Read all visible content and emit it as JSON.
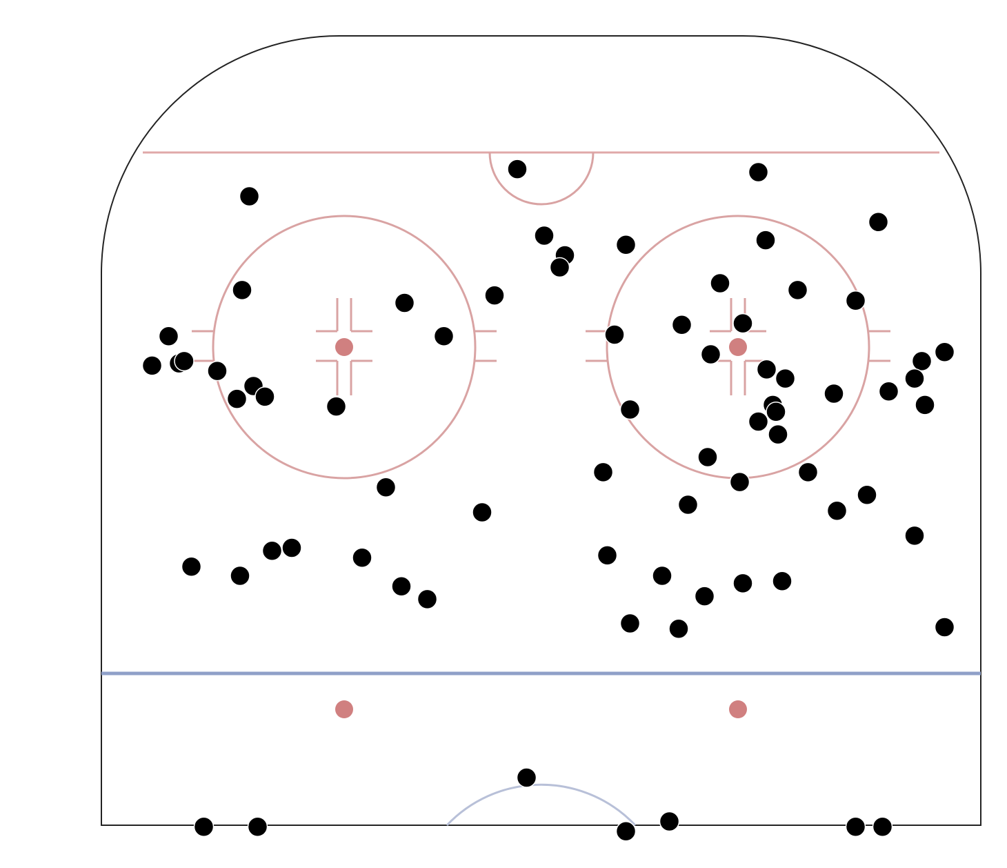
{
  "chart_data": {
    "type": "scatter",
    "title": "",
    "xlabel": "",
    "ylabel": "",
    "xlim": [
      -42.5,
      42.5
    ],
    "ylim": [
      0,
      100
    ],
    "grid": false,
    "background": "hockey-rink-offensive-zone",
    "colors": {
      "points": "#000000",
      "point_outline": "#ffffff",
      "red_lines": "#d9a3a3",
      "faceoff_dots": "#d08080",
      "blue_line": "#8fa0c8",
      "boards": "#222222"
    },
    "points": [
      [
        -2.3,
        86.8
      ],
      [
        21.0,
        86.4
      ],
      [
        -28.2,
        83.2
      ],
      [
        32.6,
        79.8
      ],
      [
        0.3,
        78.0
      ],
      [
        2.3,
        75.4
      ],
      [
        1.8,
        73.8
      ],
      [
        8.2,
        76.8
      ],
      [
        21.7,
        77.4
      ],
      [
        -28.9,
        70.8
      ],
      [
        17.3,
        71.7
      ],
      [
        24.8,
        70.8
      ],
      [
        30.4,
        69.4
      ],
      [
        -4.5,
        70.1
      ],
      [
        -13.2,
        69.1
      ],
      [
        -9.4,
        64.7
      ],
      [
        -36.0,
        64.7
      ],
      [
        -37.6,
        60.8
      ],
      [
        -35.0,
        61.1
      ],
      [
        -34.5,
        61.4
      ],
      [
        -31.3,
        60.1
      ],
      [
        -27.8,
        58.1
      ],
      [
        -29.4,
        56.4
      ],
      [
        -26.7,
        56.7
      ],
      [
        -19.8,
        55.4
      ],
      [
        7.1,
        64.9
      ],
      [
        13.6,
        66.2
      ],
      [
        19.5,
        66.4
      ],
      [
        16.4,
        62.3
      ],
      [
        21.8,
        60.3
      ],
      [
        23.6,
        59.1
      ],
      [
        28.3,
        57.1
      ],
      [
        22.4,
        55.6
      ],
      [
        22.7,
        54.7
      ],
      [
        21.0,
        53.4
      ],
      [
        22.9,
        51.7
      ],
      [
        8.6,
        55.0
      ],
      [
        33.6,
        57.4
      ],
      [
        36.8,
        61.4
      ],
      [
        39.0,
        62.6
      ],
      [
        36.1,
        59.1
      ],
      [
        37.1,
        55.6
      ],
      [
        16.1,
        48.7
      ],
      [
        6.0,
        46.7
      ],
      [
        19.2,
        45.4
      ],
      [
        25.8,
        46.7
      ],
      [
        -15.0,
        44.7
      ],
      [
        -5.7,
        41.4
      ],
      [
        14.2,
        42.4
      ],
      [
        28.6,
        41.6
      ],
      [
        31.5,
        43.7
      ],
      [
        36.1,
        38.3
      ],
      [
        -33.8,
        34.2
      ],
      [
        -29.1,
        33.0
      ],
      [
        -26.0,
        36.3
      ],
      [
        -24.1,
        36.7
      ],
      [
        -17.3,
        35.4
      ],
      [
        -13.5,
        31.6
      ],
      [
        -11.0,
        29.9
      ],
      [
        6.4,
        35.7
      ],
      [
        11.7,
        33.0
      ],
      [
        15.8,
        30.3
      ],
      [
        19.5,
        32.0
      ],
      [
        23.3,
        32.3
      ],
      [
        8.6,
        26.7
      ],
      [
        13.3,
        26.0
      ],
      [
        39.0,
        26.2
      ],
      [
        -1.4,
        6.3
      ],
      [
        -32.6,
        -0.2
      ],
      [
        -27.4,
        -0.2
      ],
      [
        8.2,
        -0.8
      ],
      [
        12.4,
        0.5
      ],
      [
        30.4,
        -0.2
      ],
      [
        33.0,
        -0.2
      ]
    ]
  }
}
